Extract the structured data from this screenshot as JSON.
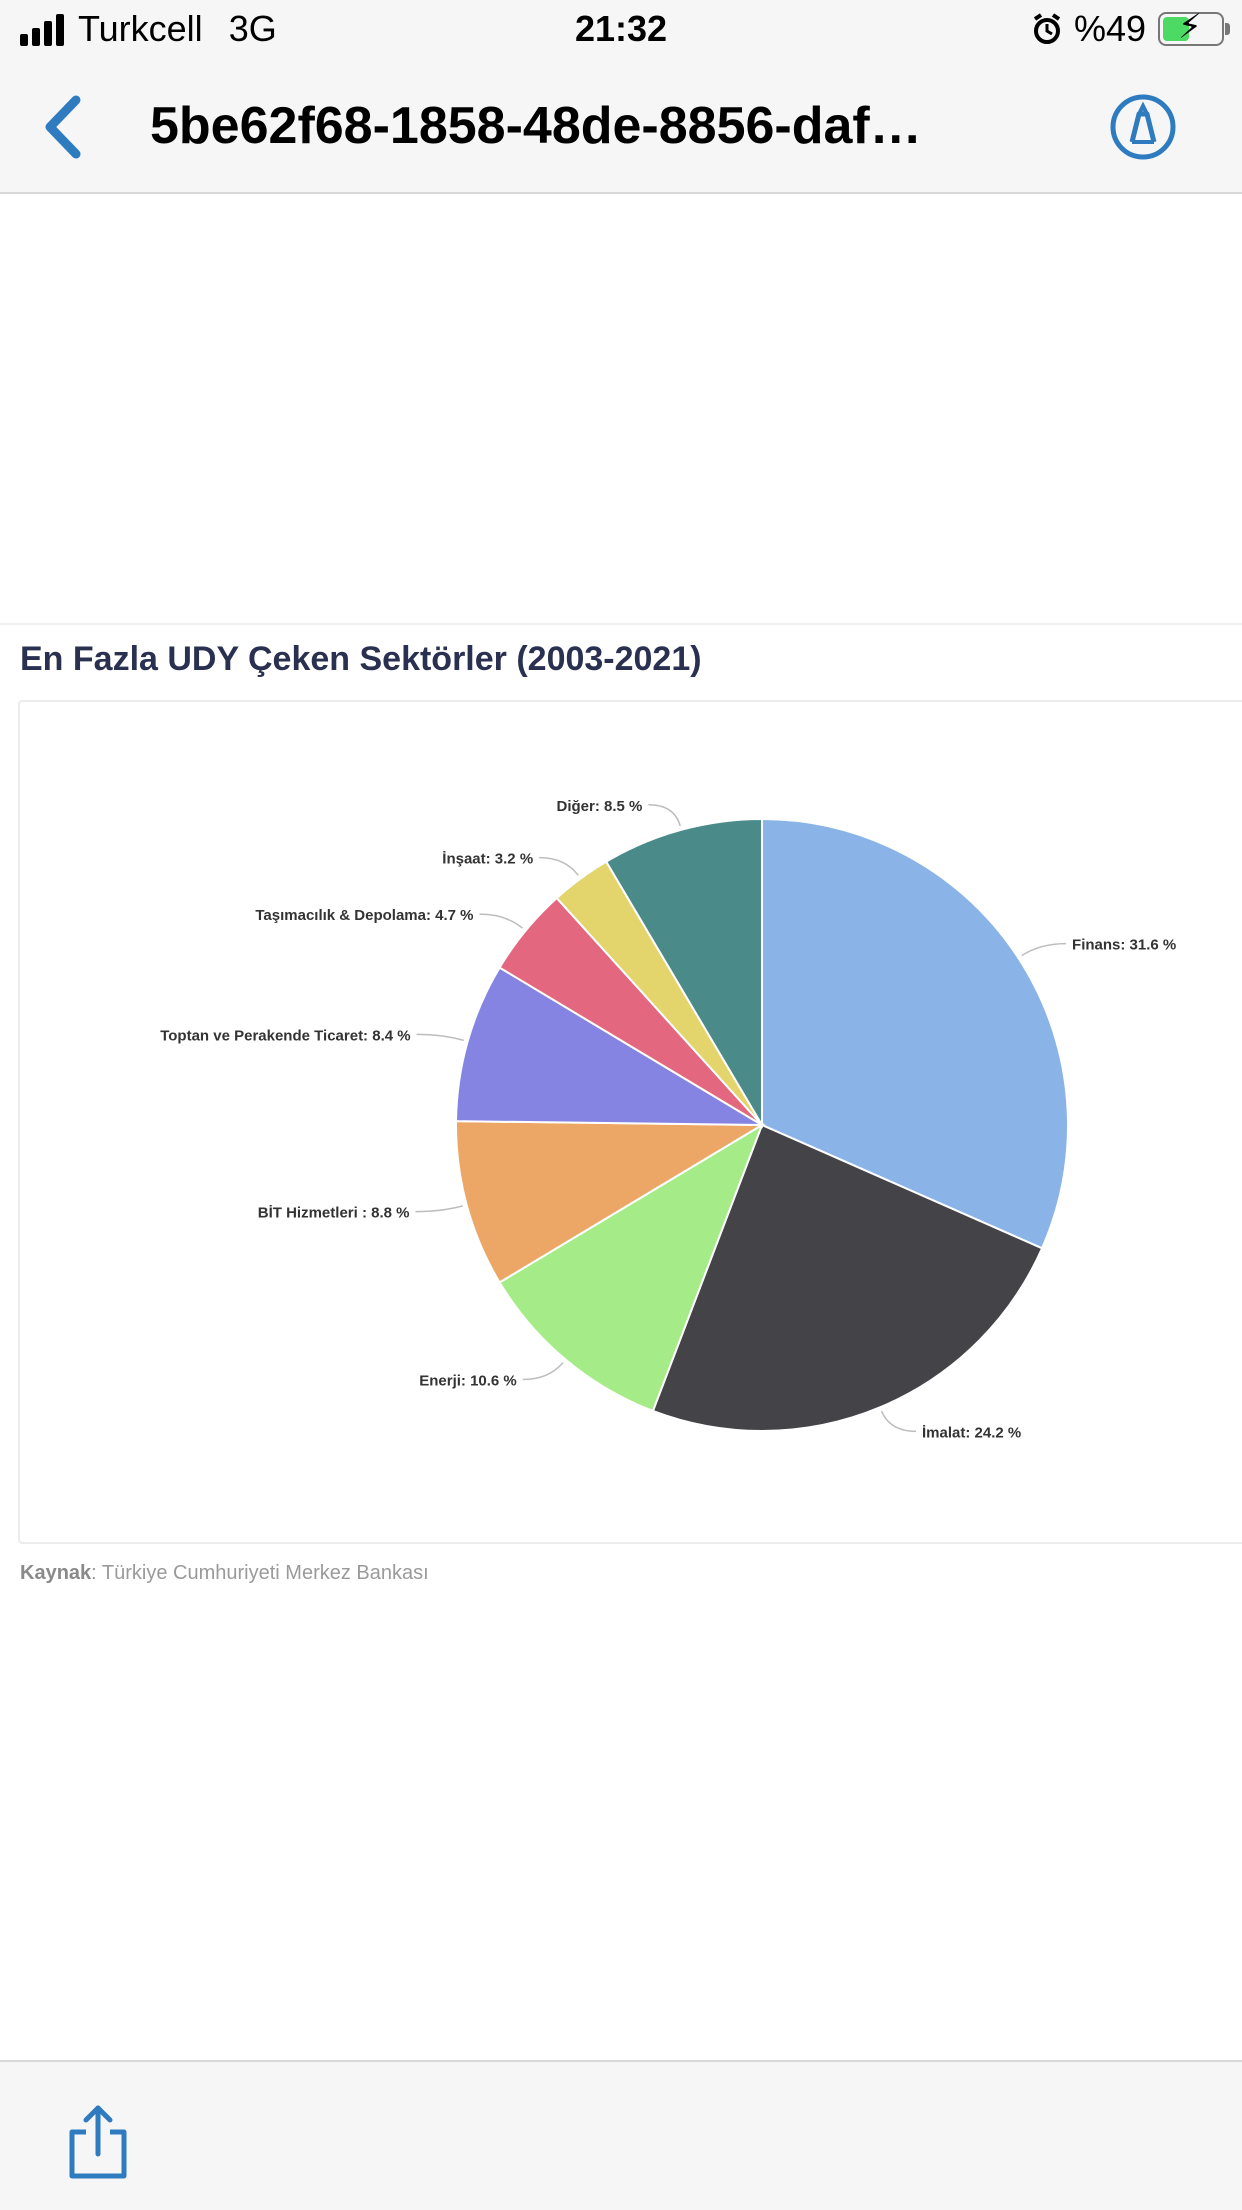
{
  "status_bar": {
    "carrier": "Turkcell",
    "network": "3G",
    "time": "21:32",
    "battery": "%49",
    "icons": [
      "signal-bars-icon",
      "alarm-icon",
      "battery-charging-icon"
    ]
  },
  "nav": {
    "title": "5be62f68-1858-48de-8856-daf…",
    "icons": [
      "chevron-left-icon",
      "markup-pen-icon"
    ]
  },
  "chart_section": {
    "title": "En Fazla UDY Çeken Sektörler (2003-2021)",
    "source_label": "Kaynak",
    "source_text": ": Türkiye Cumhuriyeti Merkez Bankası"
  },
  "chart_data": {
    "type": "pie",
    "title": "En Fazla UDY Çeken Sektörler (2003-2021)",
    "slices": [
      {
        "label": "Finans: 31.6 %",
        "value": 31.6,
        "color": "#8ab4e8"
      },
      {
        "label": "İmalat: 24.2 %",
        "value": 24.2,
        "color": "#434348"
      },
      {
        "label": "Enerji: 10.6 %",
        "value": 10.6,
        "color": "#a5eb87"
      },
      {
        "label": "BİT Hizmetleri : 8.8 %",
        "value": 8.8,
        "color": "#eca767"
      },
      {
        "label": "Toptan ve Perakende Ticaret: 8.4 %",
        "value": 8.4,
        "color": "#8584e3"
      },
      {
        "label": "Taşımacılık & Depolama: 4.7 %",
        "value": 4.7,
        "color": "#e2677f"
      },
      {
        "label": "İnşaat: 3.2 %",
        "value": 3.2,
        "color": "#e3d46c"
      },
      {
        "label": "Diğer: 8.5 %",
        "value": 8.5,
        "color": "#4a8b8a"
      }
    ]
  },
  "bottom_bar": {
    "icons": [
      "share-icon"
    ]
  }
}
